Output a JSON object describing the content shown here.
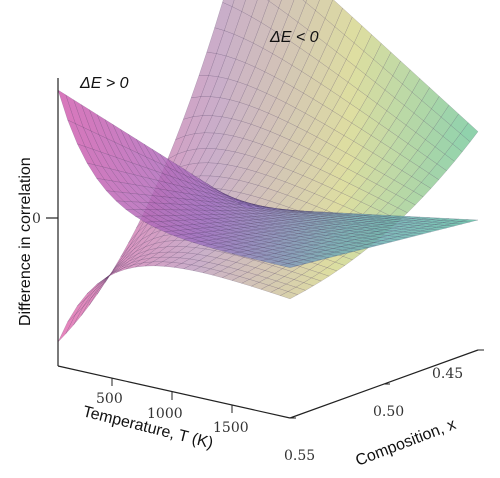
{
  "chart_data": {
    "type": "surface3d",
    "title": "",
    "xlabel": "Temperature, T (K)",
    "ylabel": "Composition, x",
    "zlabel": "Difference in correlation",
    "x_ticks": [
      "500",
      "1000",
      "1500"
    ],
    "y_ticks": [
      "0.45",
      "0.50",
      "0.55"
    ],
    "z_ticks": [
      "0"
    ],
    "x_range": [
      250,
      1900
    ],
    "y_range": [
      0.45,
      0.55
    ],
    "grid": "surface mesh",
    "surfaces": [
      {
        "note": "surface with one sign; large positive at low T and x = 0.55",
        "colormap": [
          "#d060b0",
          "#a070c0",
          "#70a8b8",
          "#60c0a0"
        ]
      },
      {
        "note": "surface with opposite sign; large positive at high T and x = 0.45",
        "colormap": [
          "#e070b0",
          "#c0a0c0",
          "#d8d890",
          "#70c8a0"
        ]
      }
    ],
    "annotations": [
      {
        "text": "ΔE > 0"
      },
      {
        "text": "ΔE < 0"
      }
    ]
  }
}
